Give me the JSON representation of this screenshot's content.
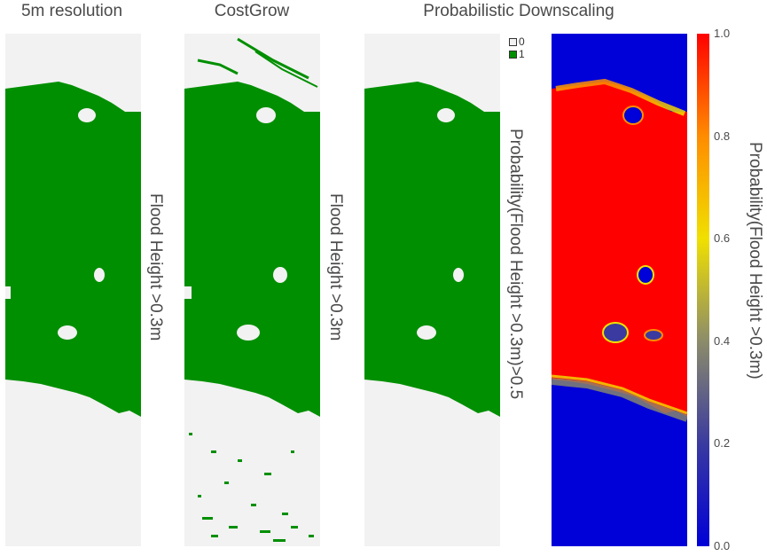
{
  "chart_data": [
    {
      "type": "heatmap",
      "title": "5m resolution",
      "ylabel": "Flood Height >0.3m",
      "colors": {
        "0": "#f2f2f2",
        "1": "#008f00"
      }
    },
    {
      "type": "heatmap",
      "title": "CostGrow",
      "ylabel": "Flood Height >0.3m",
      "colors": {
        "0": "#f2f2f2",
        "1": "#008f00"
      }
    },
    {
      "type": "heatmap",
      "title": "Probabilistic Downscaling",
      "ylabel": "Probability(Flood Height >0.3m)>0.5",
      "legend": {
        "position": "top-right",
        "entries": [
          "0",
          "1"
        ]
      },
      "colors": {
        "0": "#f2f2f2",
        "1": "#008f00"
      }
    },
    {
      "type": "heatmap",
      "title": "",
      "colorbar_label": "Probability(Flood Height >0.3m)",
      "colorbar_range": [
        0.0,
        1.0
      ],
      "colorbar_ticks": [
        "0.0",
        "0.2",
        "0.4",
        "0.6",
        "0.8",
        "1.0"
      ],
      "colorscale": [
        "#0000d8",
        "#3a3aa0",
        "#8c8c6a",
        "#f0e000",
        "#ff8c00",
        "#ff0000"
      ]
    }
  ]
}
